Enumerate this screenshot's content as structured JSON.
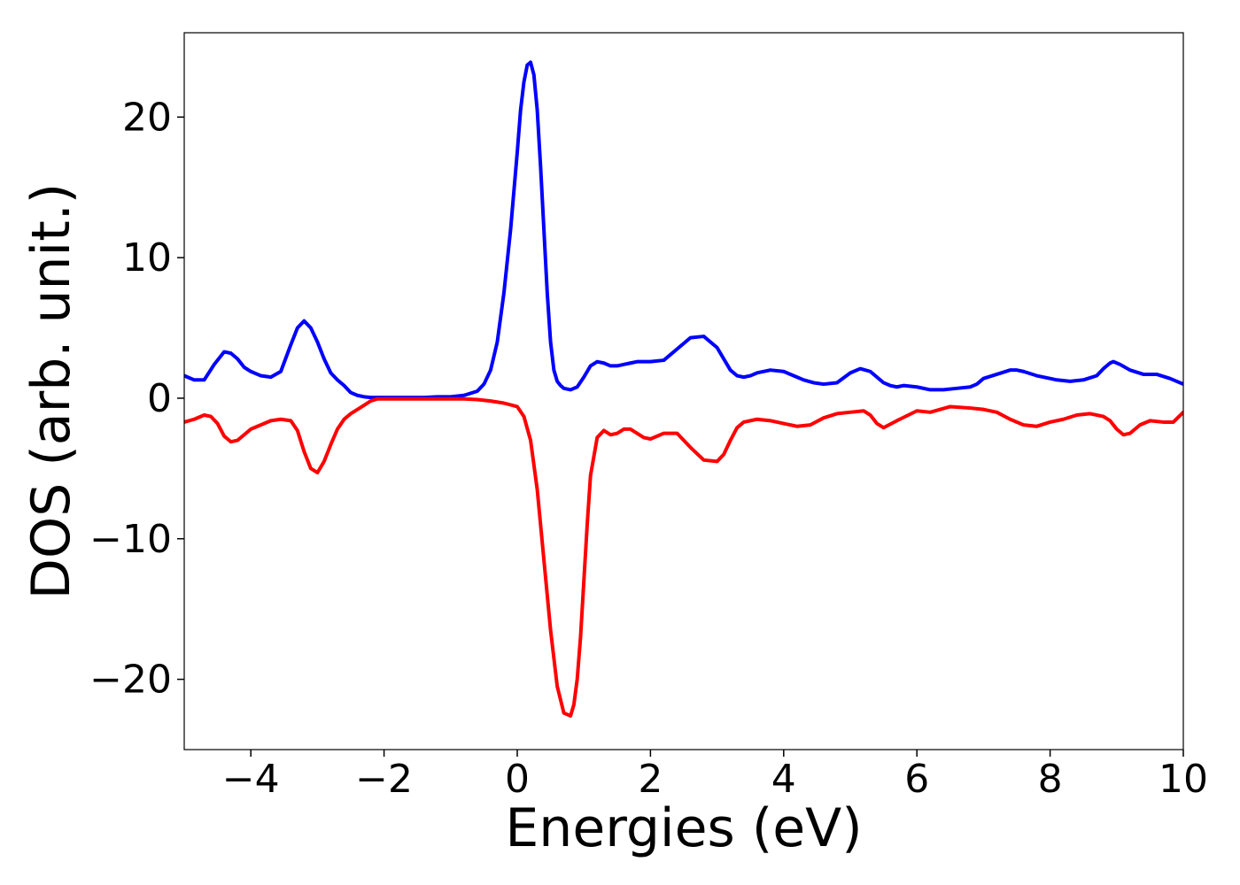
{
  "chart_data": {
    "type": "line",
    "title": "",
    "xlabel": "Energies (eV)",
    "ylabel": "DOS (arb. unit.)",
    "xlim": [
      -5,
      10
    ],
    "ylim": [
      -25,
      26
    ],
    "grid": false,
    "legend": "none",
    "x_ticks": [
      -4,
      -2,
      0,
      2,
      4,
      6,
      8,
      10
    ],
    "x_tick_labels": [
      "−4",
      "−2",
      "0",
      "2",
      "4",
      "6",
      "8",
      "10"
    ],
    "y_ticks": [
      -20,
      -10,
      0,
      10,
      20
    ],
    "y_tick_labels": [
      "−20",
      "−10",
      "0",
      "10",
      "20"
    ],
    "series": [
      {
        "color": "#0000ff",
        "x": [
          -5.0,
          -4.85,
          -4.7,
          -4.55,
          -4.4,
          -4.3,
          -4.2,
          -4.1,
          -4.0,
          -3.85,
          -3.7,
          -3.55,
          -3.4,
          -3.3,
          -3.2,
          -3.1,
          -3.0,
          -2.9,
          -2.8,
          -2.7,
          -2.6,
          -2.5,
          -2.4,
          -2.3,
          -2.2,
          -2.1,
          -2.0,
          -1.8,
          -1.6,
          -1.4,
          -1.2,
          -1.0,
          -0.8,
          -0.6,
          -0.5,
          -0.4,
          -0.3,
          -0.2,
          -0.1,
          0.0,
          0.05,
          0.1,
          0.15,
          0.2,
          0.25,
          0.3,
          0.35,
          0.4,
          0.45,
          0.5,
          0.55,
          0.6,
          0.65,
          0.7,
          0.8,
          0.9,
          1.0,
          1.1,
          1.2,
          1.3,
          1.4,
          1.5,
          1.6,
          1.7,
          1.8,
          2.0,
          2.2,
          2.4,
          2.6,
          2.8,
          3.0,
          3.1,
          3.2,
          3.3,
          3.4,
          3.5,
          3.6,
          3.8,
          4.0,
          4.2,
          4.3,
          4.45,
          4.6,
          4.8,
          5.0,
          5.15,
          5.3,
          5.4,
          5.5,
          5.6,
          5.7,
          5.8,
          6.0,
          6.2,
          6.4,
          6.6,
          6.8,
          6.9,
          7.0,
          7.2,
          7.4,
          7.5,
          7.6,
          7.8,
          8.0,
          8.1,
          8.3,
          8.5,
          8.7,
          8.8,
          8.9,
          8.95,
          9.05,
          9.2,
          9.4,
          9.6,
          9.8,
          10.0
        ],
        "y": [
          1.6,
          1.3,
          1.3,
          2.4,
          3.3,
          3.2,
          2.8,
          2.2,
          1.9,
          1.6,
          1.5,
          1.9,
          3.8,
          5.0,
          5.5,
          5.0,
          4.0,
          2.8,
          1.8,
          1.3,
          0.9,
          0.4,
          0.2,
          0.1,
          0.05,
          0.05,
          0.05,
          0.05,
          0.05,
          0.05,
          0.1,
          0.1,
          0.2,
          0.5,
          1.0,
          2.0,
          4.0,
          7.5,
          12.0,
          17.5,
          20.5,
          22.5,
          23.7,
          23.9,
          23.0,
          20.5,
          16.5,
          12.0,
          7.5,
          4.0,
          2.0,
          1.2,
          0.9,
          0.7,
          0.6,
          0.8,
          1.5,
          2.3,
          2.6,
          2.5,
          2.3,
          2.3,
          2.4,
          2.5,
          2.6,
          2.6,
          2.7,
          3.5,
          4.3,
          4.4,
          3.6,
          2.8,
          2.0,
          1.6,
          1.5,
          1.6,
          1.8,
          2.0,
          1.9,
          1.5,
          1.3,
          1.1,
          1.0,
          1.1,
          1.8,
          2.1,
          1.9,
          1.5,
          1.1,
          0.9,
          0.8,
          0.9,
          0.8,
          0.6,
          0.6,
          0.7,
          0.8,
          1.0,
          1.4,
          1.7,
          2.0,
          2.0,
          1.9,
          1.6,
          1.4,
          1.3,
          1.2,
          1.3,
          1.6,
          2.1,
          2.5,
          2.6,
          2.4,
          2.0,
          1.7,
          1.7,
          1.4,
          1.0
        ]
      },
      {
        "color": "#ff0000",
        "x": [
          -5.0,
          -4.85,
          -4.7,
          -4.6,
          -4.5,
          -4.4,
          -4.3,
          -4.2,
          -4.1,
          -4.0,
          -3.85,
          -3.7,
          -3.55,
          -3.4,
          -3.3,
          -3.2,
          -3.1,
          -3.0,
          -2.9,
          -2.8,
          -2.7,
          -2.6,
          -2.5,
          -2.4,
          -2.3,
          -2.2,
          -2.1,
          -2.0,
          -1.8,
          -1.6,
          -1.4,
          -1.2,
          -1.0,
          -0.8,
          -0.6,
          -0.4,
          -0.2,
          0.0,
          0.1,
          0.2,
          0.3,
          0.4,
          0.5,
          0.6,
          0.7,
          0.8,
          0.85,
          0.9,
          0.95,
          1.0,
          1.05,
          1.1,
          1.2,
          1.3,
          1.4,
          1.5,
          1.6,
          1.7,
          1.8,
          1.9,
          2.0,
          2.2,
          2.4,
          2.6,
          2.8,
          3.0,
          3.1,
          3.2,
          3.3,
          3.4,
          3.6,
          3.8,
          4.0,
          4.2,
          4.4,
          4.6,
          4.8,
          5.0,
          5.2,
          5.3,
          5.4,
          5.5,
          5.7,
          6.0,
          6.2,
          6.5,
          6.8,
          7.0,
          7.2,
          7.4,
          7.6,
          7.8,
          8.0,
          8.2,
          8.4,
          8.6,
          8.8,
          8.9,
          9.0,
          9.1,
          9.2,
          9.35,
          9.5,
          9.7,
          9.85,
          10.0
        ],
        "y": [
          -1.7,
          -1.5,
          -1.2,
          -1.3,
          -1.8,
          -2.7,
          -3.1,
          -3.0,
          -2.6,
          -2.2,
          -1.9,
          -1.6,
          -1.5,
          -1.6,
          -2.3,
          -3.8,
          -5.0,
          -5.3,
          -4.5,
          -3.3,
          -2.2,
          -1.5,
          -1.1,
          -0.8,
          -0.5,
          -0.2,
          -0.05,
          -0.05,
          -0.05,
          -0.05,
          -0.05,
          -0.05,
          -0.05,
          -0.05,
          -0.1,
          -0.2,
          -0.35,
          -0.6,
          -1.3,
          -3.0,
          -6.5,
          -11.5,
          -16.5,
          -20.5,
          -22.4,
          -22.6,
          -21.8,
          -20.0,
          -17.0,
          -13.0,
          -9.0,
          -5.5,
          -2.8,
          -2.3,
          -2.6,
          -2.5,
          -2.2,
          -2.2,
          -2.5,
          -2.8,
          -2.9,
          -2.5,
          -2.5,
          -3.5,
          -4.4,
          -4.5,
          -4.0,
          -3.0,
          -2.1,
          -1.7,
          -1.5,
          -1.6,
          -1.8,
          -2.0,
          -1.9,
          -1.4,
          -1.1,
          -1.0,
          -0.9,
          -1.2,
          -1.8,
          -2.1,
          -1.6,
          -0.9,
          -1.0,
          -0.6,
          -0.7,
          -0.8,
          -1.0,
          -1.5,
          -1.9,
          -2.0,
          -1.7,
          -1.5,
          -1.2,
          -1.1,
          -1.3,
          -1.6,
          -2.2,
          -2.6,
          -2.5,
          -1.9,
          -1.6,
          -1.7,
          -1.7,
          -1.0
        ]
      }
    ]
  }
}
